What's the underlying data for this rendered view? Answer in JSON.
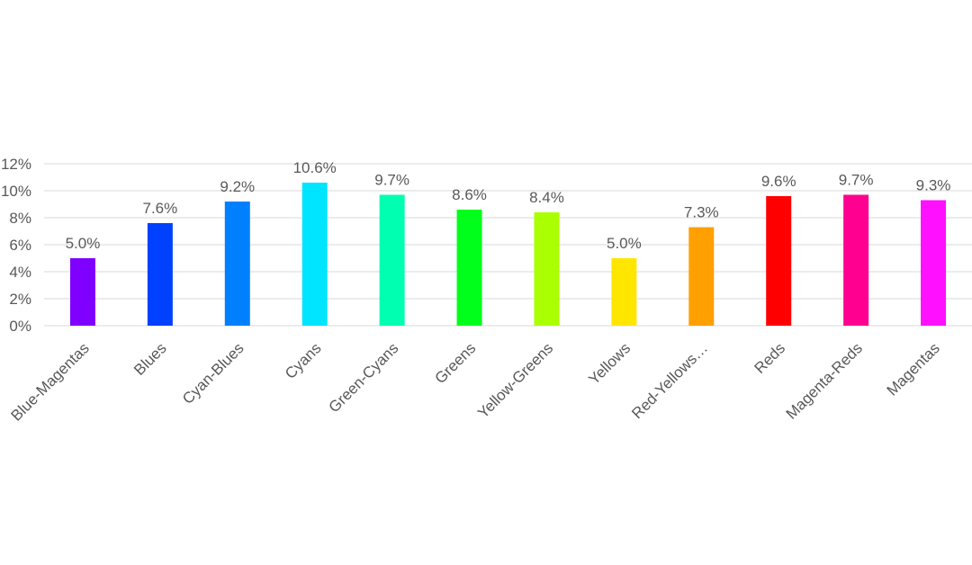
{
  "chart_data": {
    "type": "bar",
    "title": "",
    "xlabel": "",
    "ylabel": "",
    "categories": [
      "Blue-Magentas",
      "Blues",
      "Cyan-Blues",
      "Cyans",
      "Green-Cyans",
      "Greens",
      "Yellow-Greens",
      "Yellows",
      "Red-Yellows…",
      "Reds",
      "Magenta-Reds",
      "Magentas"
    ],
    "values": [
      5.0,
      7.6,
      9.2,
      10.6,
      9.7,
      8.6,
      8.4,
      5.0,
      7.3,
      9.6,
      9.7,
      9.3
    ],
    "data_labels": [
      "5.0%",
      "7.6%",
      "9.2%",
      "10.6%",
      "9.7%",
      "8.6%",
      "8.4%",
      "5.0%",
      "7.3%",
      "9.6%",
      "9.7%",
      "9.3%"
    ],
    "colors": [
      "#8000ff",
      "#0040ff",
      "#0080ff",
      "#00e5ff",
      "#00ffb0",
      "#00ff1a",
      "#aaff00",
      "#ffe600",
      "#ffa000",
      "#ff0000",
      "#ff0090",
      "#ff10ff"
    ],
    "yticks": [
      0,
      2,
      4,
      6,
      8,
      10,
      12
    ],
    "ytick_labels": [
      "0%",
      "2%",
      "4%",
      "6%",
      "8%",
      "10%",
      "12%"
    ],
    "ylim": [
      0,
      12
    ],
    "grid": true,
    "legend": "none"
  }
}
